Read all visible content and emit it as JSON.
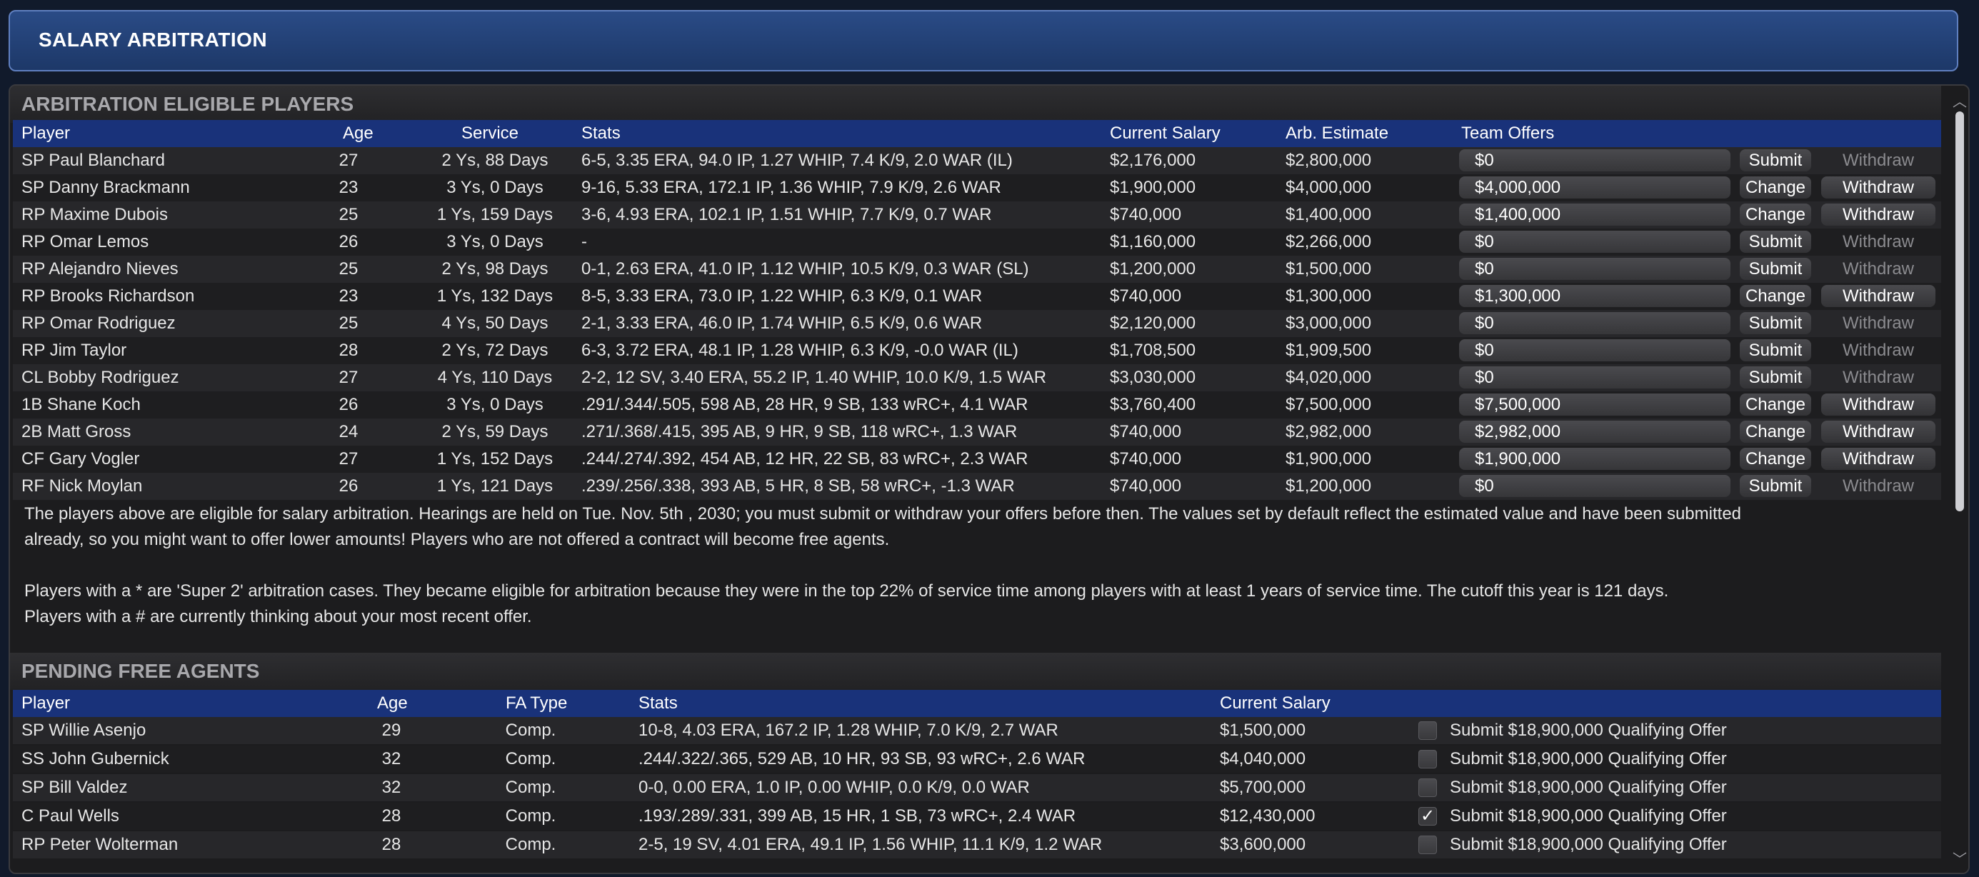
{
  "title": "SALARY ARBITRATION",
  "arb": {
    "section_title": "ARBITRATION ELIGIBLE PLAYERS",
    "headers": {
      "player": "Player",
      "age": "Age",
      "service": "Service",
      "stats": "Stats",
      "current_salary": "Current Salary",
      "arb_estimate": "Arb. Estimate",
      "team_offers": "Team Offers"
    },
    "rows": [
      {
        "player": "SP Paul Blanchard",
        "age": "27",
        "service": "2 Ys, 88 Days",
        "stats": "6-5, 3.35 ERA, 94.0 IP, 1.27 WHIP, 7.4 K/9, 2.0 WAR (IL)",
        "current_salary": "$2,176,000",
        "arb_estimate": "$2,800,000",
        "offer": "$0",
        "action": "Submit",
        "withdraw": "Withdraw",
        "withdraw_enabled": false
      },
      {
        "player": "SP Danny Brackmann",
        "age": "23",
        "service": "3 Ys, 0 Days",
        "stats": "9-16, 5.33 ERA, 172.1 IP, 1.36 WHIP, 7.9 K/9, 2.6 WAR",
        "current_salary": "$1,900,000",
        "arb_estimate": "$4,000,000",
        "offer": "$4,000,000",
        "action": "Change",
        "withdraw": "Withdraw",
        "withdraw_enabled": true
      },
      {
        "player": "RP Maxime Dubois",
        "age": "25",
        "service": "1 Ys, 159 Days",
        "stats": "3-6, 4.93 ERA, 102.1 IP, 1.51 WHIP, 7.7 K/9, 0.7 WAR",
        "current_salary": "$740,000",
        "arb_estimate": "$1,400,000",
        "offer": "$1,400,000",
        "action": "Change",
        "withdraw": "Withdraw",
        "withdraw_enabled": true
      },
      {
        "player": "RP Omar Lemos",
        "age": "26",
        "service": "3 Ys, 0 Days",
        "stats": "-",
        "current_salary": "$1,160,000",
        "arb_estimate": "$2,266,000",
        "offer": "$0",
        "action": "Submit",
        "withdraw": "Withdraw",
        "withdraw_enabled": false
      },
      {
        "player": "RP Alejandro Nieves",
        "age": "25",
        "service": "2 Ys, 98 Days",
        "stats": "0-1, 2.63 ERA, 41.0 IP, 1.12 WHIP, 10.5 K/9, 0.3 WAR (SL)",
        "current_salary": "$1,200,000",
        "arb_estimate": "$1,500,000",
        "offer": "$0",
        "action": "Submit",
        "withdraw": "Withdraw",
        "withdraw_enabled": false
      },
      {
        "player": "RP Brooks Richardson",
        "age": "23",
        "service": "1 Ys, 132 Days",
        "stats": "8-5, 3.33 ERA, 73.0 IP, 1.22 WHIP, 6.3 K/9, 0.1 WAR",
        "current_salary": "$740,000",
        "arb_estimate": "$1,300,000",
        "offer": "$1,300,000",
        "action": "Change",
        "withdraw": "Withdraw",
        "withdraw_enabled": true
      },
      {
        "player": "RP Omar Rodriguez",
        "age": "25",
        "service": "4 Ys, 50 Days",
        "stats": "2-1, 3.33 ERA, 46.0 IP, 1.74 WHIP, 6.5 K/9, 0.6 WAR",
        "current_salary": "$2,120,000",
        "arb_estimate": "$3,000,000",
        "offer": "$0",
        "action": "Submit",
        "withdraw": "Withdraw",
        "withdraw_enabled": false
      },
      {
        "player": "RP Jim Taylor",
        "age": "28",
        "service": "2 Ys, 72 Days",
        "stats": "6-3, 3.72 ERA, 48.1 IP, 1.28 WHIP, 6.3 K/9, -0.0 WAR (IL)",
        "current_salary": "$1,708,500",
        "arb_estimate": "$1,909,500",
        "offer": "$0",
        "action": "Submit",
        "withdraw": "Withdraw",
        "withdraw_enabled": false
      },
      {
        "player": "CL Bobby Rodriguez",
        "age": "27",
        "service": "4 Ys, 110 Days",
        "stats": "2-2, 12 SV, 3.40 ERA, 55.2 IP, 1.40 WHIP, 10.0 K/9, 1.5 WAR",
        "current_salary": "$3,030,000",
        "arb_estimate": "$4,020,000",
        "offer": "$0",
        "action": "Submit",
        "withdraw": "Withdraw",
        "withdraw_enabled": false
      },
      {
        "player": "1B Shane Koch",
        "age": "26",
        "service": "3 Ys, 0 Days",
        "stats": ".291/.344/.505, 598 AB, 28 HR, 9 SB, 133 wRC+, 4.1 WAR",
        "current_salary": "$3,760,400",
        "arb_estimate": "$7,500,000",
        "offer": "$7,500,000",
        "action": "Change",
        "withdraw": "Withdraw",
        "withdraw_enabled": true
      },
      {
        "player": "2B Matt Gross",
        "age": "24",
        "service": "2 Ys, 59 Days",
        "stats": ".271/.368/.415, 395 AB, 9 HR, 9 SB, 118 wRC+, 1.3 WAR",
        "current_salary": "$740,000",
        "arb_estimate": "$2,982,000",
        "offer": "$2,982,000",
        "action": "Change",
        "withdraw": "Withdraw",
        "withdraw_enabled": true
      },
      {
        "player": "CF Gary Vogler",
        "age": "27",
        "service": "1 Ys, 152 Days",
        "stats": ".244/.274/.392, 454 AB, 12 HR, 22 SB, 83 wRC+, 2.3 WAR",
        "current_salary": "$740,000",
        "arb_estimate": "$1,900,000",
        "offer": "$1,900,000",
        "action": "Change",
        "withdraw": "Withdraw",
        "withdraw_enabled": true
      },
      {
        "player": "RF Nick Moylan",
        "age": "26",
        "service": "1 Ys, 121 Days",
        "stats": ".239/.256/.338, 393 AB, 5 HR, 8 SB, 58 wRC+, -1.3 WAR",
        "current_salary": "$740,000",
        "arb_estimate": "$1,200,000",
        "offer": "$0",
        "action": "Submit",
        "withdraw": "Withdraw",
        "withdraw_enabled": false
      }
    ],
    "note_line1": "The players above are eligible for salary arbitration. Hearings are held on Tue. Nov. 5th , 2030; you must submit or withdraw your offers before then. The values set by default reflect the estimated value and have been submitted",
    "note_line2": "already, so you might want to offer lower amounts! Players who are not offered a contract will become free agents.",
    "note_line3": "Players with a * are 'Super 2' arbitration cases. They became eligible for arbitration because they were in the top 22% of service time among players with at least 1 years of service time. The cutoff this year is 121 days.",
    "note_line4": "Players with a # are currently thinking about your most recent offer."
  },
  "fa": {
    "section_title": "PENDING FREE AGENTS",
    "headers": {
      "player": "Player",
      "age": "Age",
      "fa_type": "FA Type",
      "stats": "Stats",
      "current_salary": "Current Salary"
    },
    "rows": [
      {
        "player": "SP Willie Asenjo",
        "age": "29",
        "fa_type": "Comp.",
        "stats": "10-8, 4.03 ERA, 167.2 IP, 1.28 WHIP, 7.0 K/9, 2.7 WAR",
        "current_salary": "$1,500,000",
        "checked": false,
        "offer_label": "Submit $18,900,000 Qualifying Offer"
      },
      {
        "player": "SS John Gubernick",
        "age": "32",
        "fa_type": "Comp.",
        "stats": ".244/.322/.365, 529 AB, 10 HR, 93 SB, 93 wRC+, 2.6 WAR",
        "current_salary": "$4,040,000",
        "checked": false,
        "offer_label": "Submit $18,900,000 Qualifying Offer"
      },
      {
        "player": "SP Bill Valdez",
        "age": "32",
        "fa_type": "Comp.",
        "stats": "0-0, 0.00 ERA, 1.0 IP, 0.00 WHIP, 0.0 K/9, 0.0 WAR",
        "current_salary": "$5,700,000",
        "checked": false,
        "offer_label": "Submit $18,900,000 Qualifying Offer"
      },
      {
        "player": "C Paul Wells",
        "age": "28",
        "fa_type": "Comp.",
        "stats": ".193/.289/.331, 399 AB, 15 HR, 1 SB, 73 wRC+, 2.4 WAR",
        "current_salary": "$12,430,000",
        "checked": true,
        "offer_label": "Submit $18,900,000 Qualifying Offer"
      },
      {
        "player": "RP Peter Wolterman",
        "age": "28",
        "fa_type": "Comp.",
        "stats": "2-5, 19 SV, 4.01 ERA, 49.1 IP, 1.56 WHIP, 11.1 K/9, 1.2 WAR",
        "current_salary": "$3,600,000",
        "checked": false,
        "offer_label": "Submit $18,900,000 Qualifying Offer"
      }
    ]
  },
  "colors": {
    "header_blue": "#19327a",
    "title_blue": "#2a4b86"
  }
}
